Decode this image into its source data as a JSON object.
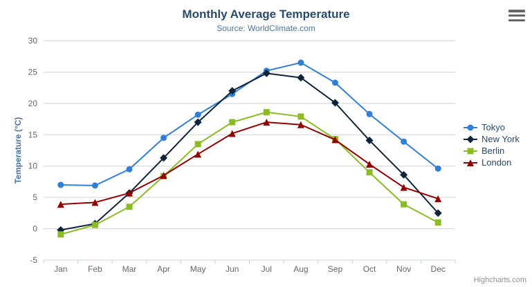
{
  "header": {
    "title": "Monthly Average Temperature",
    "subtitle": "Source: WorldClimate.com"
  },
  "credits": {
    "label": "Highcharts.com"
  },
  "colors": {
    "title_text": "#274b6d",
    "subtitle_text": "#4d759e",
    "axis_label": "#666666",
    "yaxis_title_text": "#4572a7",
    "grid_line": "#d0d0d0",
    "axis_line": "#c0d0e0",
    "legend_text": "#274b6d",
    "credits_text": "#909090",
    "export_icon": "#666666"
  },
  "chart_data": {
    "type": "line",
    "title": "Monthly Average Temperature",
    "subtitle": "Source: WorldClimate.com",
    "xlabel": "",
    "ylabel": "Temperature (°C)",
    "ylim": [
      -5,
      30
    ],
    "ytick_interval": 5,
    "grid": "horizontal",
    "legend_position": "right",
    "categories": [
      "Jan",
      "Feb",
      "Mar",
      "Apr",
      "May",
      "Jun",
      "Jul",
      "Aug",
      "Sep",
      "Oct",
      "Nov",
      "Dec"
    ],
    "series": [
      {
        "name": "Tokyo",
        "color": "#2f7ed8",
        "marker": "circle",
        "values": [
          7.0,
          6.9,
          9.5,
          14.5,
          18.2,
          21.5,
          25.2,
          26.5,
          23.3,
          18.3,
          13.9,
          9.6
        ]
      },
      {
        "name": "New York",
        "color": "#0d233a",
        "marker": "diamond",
        "values": [
          -0.2,
          0.8,
          5.7,
          11.3,
          17.0,
          22.0,
          24.8,
          24.1,
          20.1,
          14.1,
          8.6,
          2.5
        ]
      },
      {
        "name": "Berlin",
        "color": "#8bbc21",
        "marker": "square",
        "values": [
          -0.9,
          0.6,
          3.5,
          8.4,
          13.5,
          17.0,
          18.6,
          17.9,
          14.3,
          9.0,
          3.9,
          1.0
        ]
      },
      {
        "name": "London",
        "color": "#910000",
        "marker": "triangle",
        "values": [
          3.9,
          4.2,
          5.7,
          8.5,
          11.9,
          15.2,
          17.0,
          16.6,
          14.2,
          10.3,
          6.6,
          4.8
        ]
      }
    ]
  }
}
